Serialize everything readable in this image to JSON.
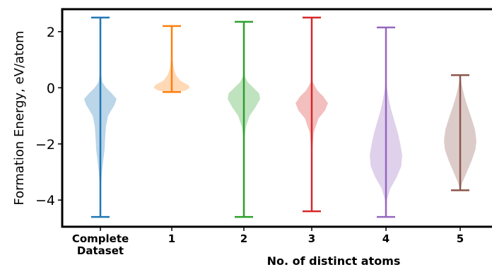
{
  "chart_data": {
    "type": "violin",
    "title": "",
    "xlabel": "No. of distinct atoms",
    "ylabel": "Formation Energy, eV/atom",
    "ylim": [
      -4.95,
      2.8
    ],
    "yticks": [
      -4,
      -2,
      0,
      2
    ],
    "ytick_labels": [
      "−4",
      "−2",
      "0",
      "2"
    ],
    "grid": false,
    "categories": [
      "Complete Dataset",
      "1",
      "2",
      "3",
      "4",
      "5"
    ],
    "category_lines": [
      [
        "Complete",
        "Dataset"
      ],
      [
        "1"
      ],
      [
        "2"
      ],
      [
        "3"
      ],
      [
        "4"
      ],
      [
        "5"
      ]
    ],
    "violins": [
      {
        "category": "Complete Dataset",
        "color": "#1f77b4",
        "min": -4.6,
        "max": 2.5,
        "profile": [
          [
            -4.6,
            0.0
          ],
          [
            -4.0,
            0.01
          ],
          [
            -3.4,
            0.04
          ],
          [
            -3.0,
            0.08
          ],
          [
            -2.6,
            0.15
          ],
          [
            -2.2,
            0.22
          ],
          [
            -1.8,
            0.25
          ],
          [
            -1.4,
            0.29
          ],
          [
            -1.0,
            0.4
          ],
          [
            -0.6,
            0.75
          ],
          [
            -0.4,
            0.85
          ],
          [
            -0.2,
            0.6
          ],
          [
            0.0,
            0.3
          ],
          [
            0.2,
            0.1
          ],
          [
            0.5,
            0.03
          ],
          [
            1.0,
            0.01
          ],
          [
            2.5,
            0.0
          ]
        ]
      },
      {
        "category": "1",
        "color": "#ff7f0e",
        "min": -0.15,
        "max": 2.2,
        "profile": [
          [
            -0.15,
            0.0
          ],
          [
            -0.1,
            0.7
          ],
          [
            0.0,
            0.95
          ],
          [
            0.1,
            0.85
          ],
          [
            0.25,
            0.45
          ],
          [
            0.45,
            0.22
          ],
          [
            0.7,
            0.1
          ],
          [
            1.0,
            0.04
          ],
          [
            1.5,
            0.01
          ],
          [
            2.2,
            0.0
          ]
        ]
      },
      {
        "category": "2",
        "color": "#2ca02c",
        "min": -4.6,
        "max": 2.35,
        "profile": [
          [
            -4.6,
            0.0
          ],
          [
            -2.5,
            0.01
          ],
          [
            -1.8,
            0.03
          ],
          [
            -1.4,
            0.1
          ],
          [
            -1.0,
            0.3
          ],
          [
            -0.7,
            0.6
          ],
          [
            -0.4,
            0.85
          ],
          [
            -0.2,
            0.8
          ],
          [
            0.0,
            0.5
          ],
          [
            0.2,
            0.2
          ],
          [
            0.4,
            0.05
          ],
          [
            0.8,
            0.01
          ],
          [
            2.35,
            0.0
          ]
        ]
      },
      {
        "category": "3",
        "color": "#d62728",
        "min": -4.4,
        "max": 2.5,
        "profile": [
          [
            -4.4,
            0.0
          ],
          [
            -3.0,
            0.01
          ],
          [
            -2.2,
            0.03
          ],
          [
            -1.6,
            0.1
          ],
          [
            -1.1,
            0.35
          ],
          [
            -0.8,
            0.7
          ],
          [
            -0.55,
            0.85
          ],
          [
            -0.3,
            0.6
          ],
          [
            -0.1,
            0.3
          ],
          [
            0.2,
            0.05
          ],
          [
            0.5,
            0.02
          ],
          [
            2.5,
            0.0
          ]
        ]
      },
      {
        "category": "4",
        "color": "#9467bd",
        "min": -4.6,
        "max": 2.15,
        "profile": [
          [
            -4.6,
            0.0
          ],
          [
            -4.0,
            0.05
          ],
          [
            -3.6,
            0.22
          ],
          [
            -3.2,
            0.55
          ],
          [
            -2.8,
            0.8
          ],
          [
            -2.4,
            0.85
          ],
          [
            -2.0,
            0.75
          ],
          [
            -1.6,
            0.62
          ],
          [
            -1.2,
            0.45
          ],
          [
            -0.8,
            0.28
          ],
          [
            -0.4,
            0.15
          ],
          [
            0.0,
            0.05
          ],
          [
            0.3,
            0.01
          ],
          [
            2.15,
            0.0
          ]
        ]
      },
      {
        "category": "5",
        "color": "#8c564b",
        "min": -3.65,
        "max": 0.45,
        "profile": [
          [
            -3.65,
            0.0
          ],
          [
            -3.4,
            0.1
          ],
          [
            -3.0,
            0.35
          ],
          [
            -2.6,
            0.6
          ],
          [
            -2.2,
            0.8
          ],
          [
            -1.9,
            0.85
          ],
          [
            -1.5,
            0.78
          ],
          [
            -1.1,
            0.6
          ],
          [
            -0.7,
            0.4
          ],
          [
            -0.3,
            0.22
          ],
          [
            0.1,
            0.08
          ],
          [
            0.45,
            0.0
          ]
        ]
      }
    ]
  }
}
